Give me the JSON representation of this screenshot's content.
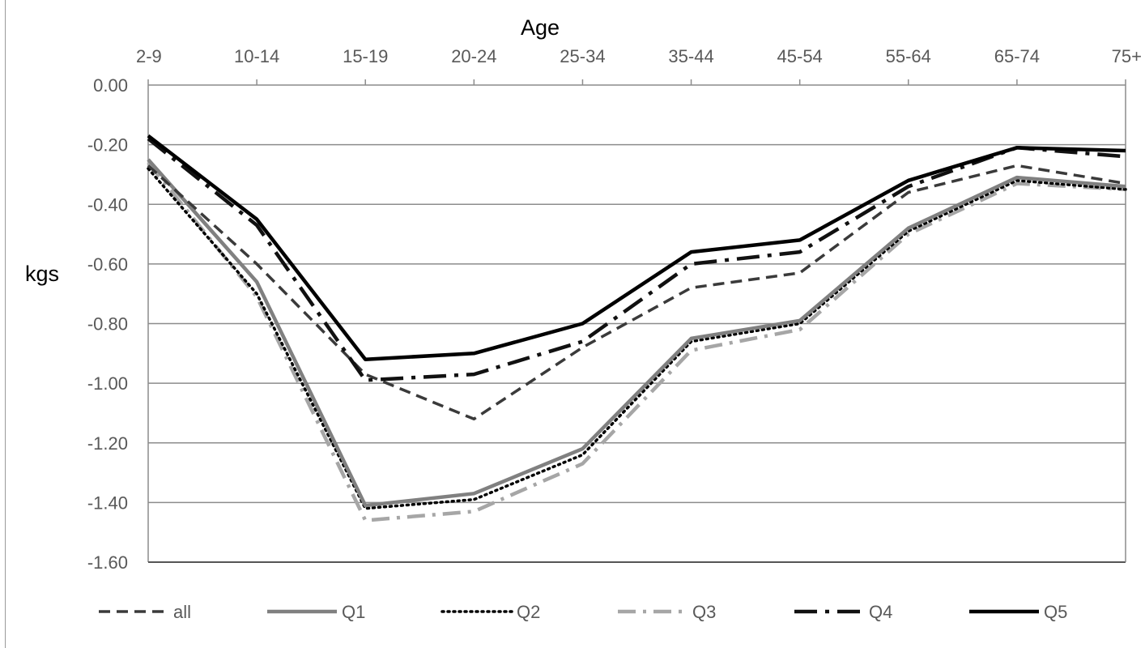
{
  "chart_data": {
    "type": "line",
    "xlabel": "Age",
    "ylabel": "kgs",
    "categories": [
      "2-9",
      "10-14",
      "15-19",
      "20-24",
      "25-34",
      "35-44",
      "45-54",
      "55-64",
      "65-74",
      "75+"
    ],
    "ylim": [
      -1.6,
      0.0
    ],
    "yticks": [
      "0.00",
      "-0.20",
      "-0.40",
      "-0.60",
      "-0.80",
      "-1.00",
      "-1.20",
      "-1.40",
      "-1.60"
    ],
    "grid": "horizontal",
    "x_axis_position": "top",
    "legend_position": "bottom",
    "series": [
      {
        "name": "all",
        "values": [
          -0.27,
          -0.6,
          -0.97,
          -1.12,
          -0.88,
          -0.68,
          -0.63,
          -0.36,
          -0.27,
          -0.33
        ],
        "color": "#3a3a3a",
        "style": "dashed"
      },
      {
        "name": "Q1",
        "values": [
          -0.25,
          -0.66,
          -1.41,
          -1.37,
          -1.22,
          -0.85,
          -0.79,
          -0.48,
          -0.31,
          -0.34
        ],
        "color": "#808080",
        "style": "solid"
      },
      {
        "name": "Q2",
        "values": [
          -0.28,
          -0.7,
          -1.42,
          -1.39,
          -1.24,
          -0.86,
          -0.8,
          -0.49,
          -0.32,
          -0.35
        ],
        "color": "#000000",
        "style": "dotted"
      },
      {
        "name": "Q3",
        "values": [
          -0.26,
          -0.71,
          -1.46,
          -1.43,
          -1.27,
          -0.89,
          -0.82,
          -0.5,
          -0.33,
          -0.35
        ],
        "color": "#a6a6a6",
        "style": "dashdot"
      },
      {
        "name": "Q4",
        "values": [
          -0.18,
          -0.47,
          -0.99,
          -0.97,
          -0.86,
          -0.6,
          -0.56,
          -0.34,
          -0.21,
          -0.24
        ],
        "color": "#111111",
        "style": "longdashdot"
      },
      {
        "name": "Q5",
        "values": [
          -0.17,
          -0.45,
          -0.92,
          -0.9,
          -0.8,
          -0.56,
          -0.52,
          -0.32,
          -0.21,
          -0.22
        ],
        "color": "#000000",
        "style": "solid"
      }
    ]
  }
}
